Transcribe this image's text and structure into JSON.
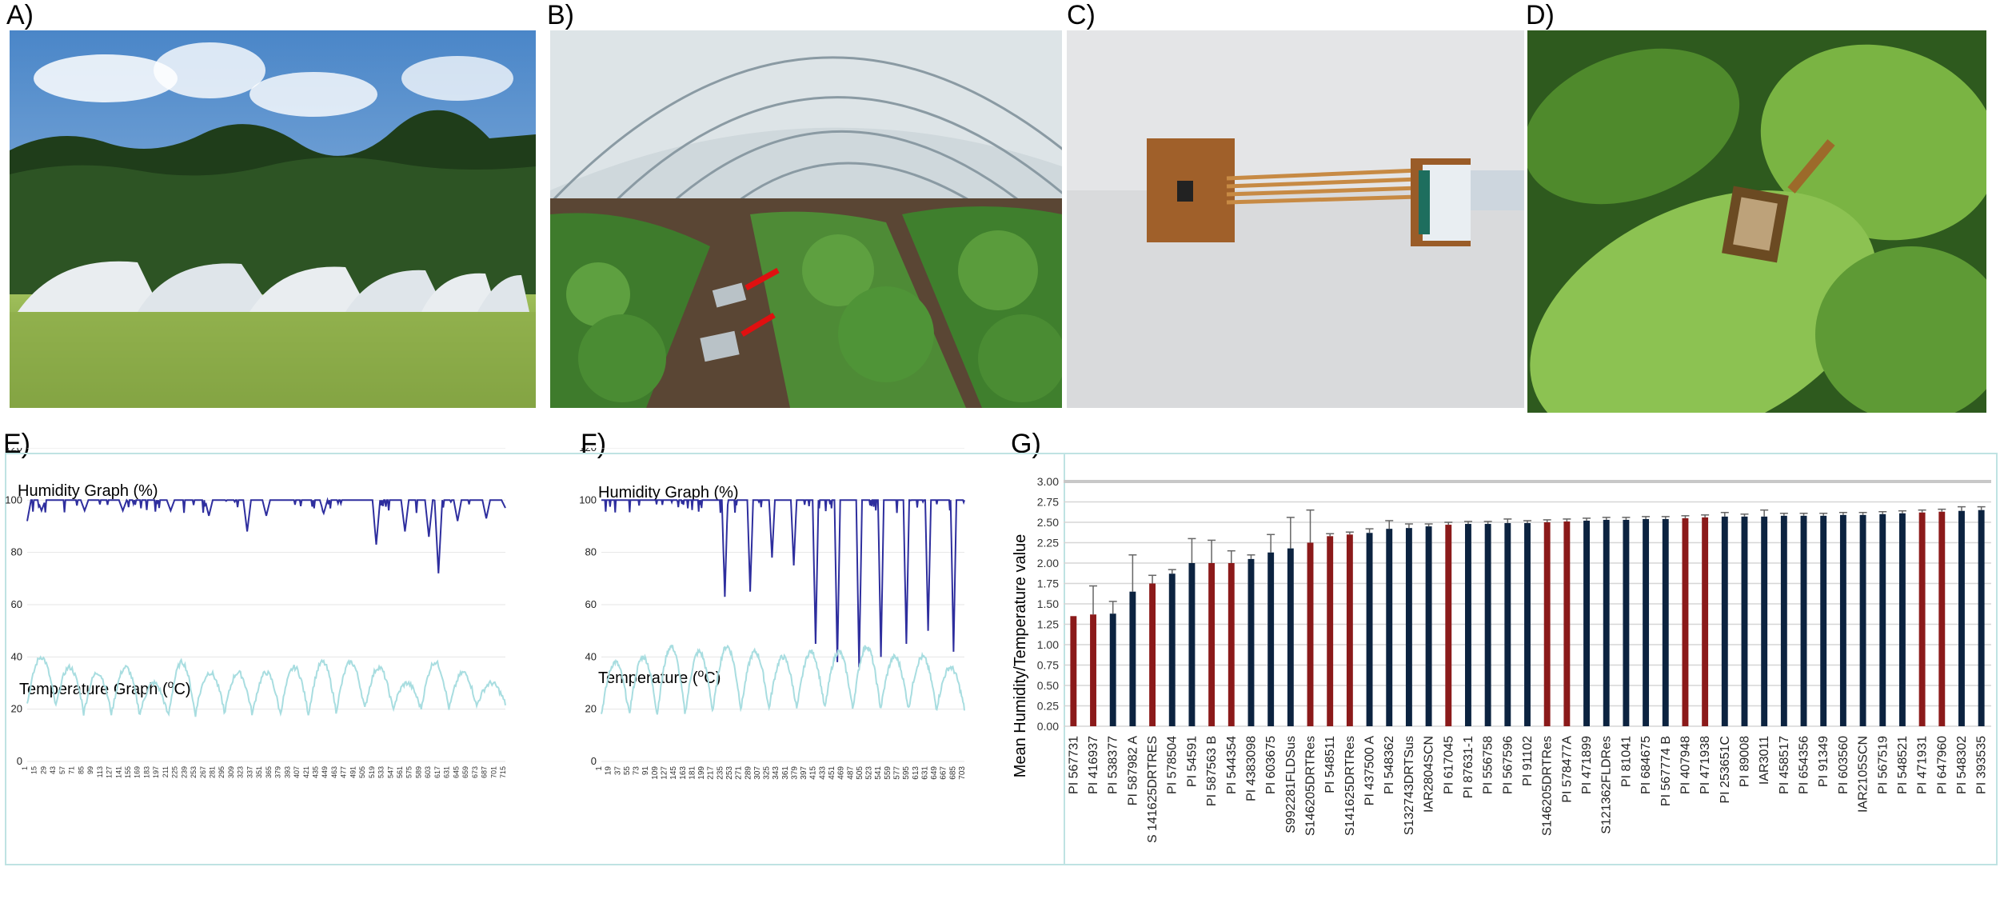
{
  "panels": {
    "a": {
      "label": "A)"
    },
    "b": {
      "label": "B)"
    },
    "c": {
      "label": "C)"
    },
    "d": {
      "label": "D)"
    },
    "e": {
      "label": "E)",
      "humidity_title": "Humidity Graph (%)",
      "temp_title": "Temperature Graph (",
      "temp_unit_sup": "o",
      "temp_unit_end": "C)"
    },
    "f": {
      "label": "F)",
      "humidity_title": "Humidity Graph (%)",
      "temp_title": "Temperature (",
      "temp_unit_sup": "o",
      "temp_unit_end": "C)"
    },
    "g": {
      "label": "G)"
    }
  },
  "colors": {
    "humidity_line": "#2e2e9e",
    "temperature_line": "#a8dde0",
    "bar_dark": "#0c2340",
    "bar_red": "#8b1a1a",
    "frame": "#bfe3e3"
  },
  "chart_data": [
    {
      "id": "E",
      "type": "line",
      "y_ticks": [
        0,
        20,
        40,
        60,
        80,
        100,
        120
      ],
      "ylim": [
        0,
        120
      ],
      "x_ticks": [
        "1",
        "15",
        "29",
        "43",
        "57",
        "71",
        "85",
        "99",
        "113",
        "127",
        "141",
        "155",
        "169",
        "183",
        "197",
        "211",
        "225",
        "239",
        "253",
        "267",
        "281",
        "295",
        "309",
        "323",
        "337",
        "351",
        "365",
        "379",
        "393",
        "407",
        "421",
        "435",
        "449",
        "463",
        "477",
        "491",
        "505",
        "519",
        "533",
        "547",
        "561",
        "575",
        "589",
        "603",
        "617",
        "631",
        "645",
        "659",
        "673",
        "687",
        "701",
        "715"
      ],
      "humidity_dips": [
        [
          0.0,
          92
        ],
        [
          0.03,
          96
        ],
        [
          0.12,
          96
        ],
        [
          0.2,
          96
        ],
        [
          0.3,
          96
        ],
        [
          0.38,
          94
        ],
        [
          0.46,
          88
        ],
        [
          0.5,
          94
        ],
        [
          0.62,
          95
        ],
        [
          0.73,
          83
        ],
        [
          0.79,
          88
        ],
        [
          0.84,
          86
        ],
        [
          0.86,
          72
        ],
        [
          0.9,
          92
        ],
        [
          0.96,
          93
        ],
        [
          1.0,
          97
        ]
      ],
      "temperature_peaks": [
        40,
        36,
        34,
        36,
        30,
        38,
        34,
        34,
        34,
        36,
        38,
        38,
        36,
        30,
        38,
        34,
        30
      ],
      "temperature_troughs": [
        22,
        20,
        18,
        18,
        18,
        16,
        20,
        18,
        18,
        18,
        18,
        20,
        20,
        20,
        20,
        20,
        22
      ]
    },
    {
      "id": "F",
      "type": "line",
      "y_ticks": [
        0,
        20,
        40,
        60,
        80,
        100,
        120
      ],
      "ylim": [
        0,
        120
      ],
      "x_ticks": [
        "1",
        "19",
        "37",
        "55",
        "73",
        "91",
        "109",
        "127",
        "145",
        "163",
        "181",
        "199",
        "217",
        "235",
        "253",
        "271",
        "289",
        "307",
        "325",
        "343",
        "361",
        "379",
        "397",
        "415",
        "433",
        "451",
        "469",
        "487",
        "505",
        "523",
        "541",
        "559",
        "577",
        "595",
        "613",
        "631",
        "649",
        "667",
        "685",
        "703"
      ],
      "humidity_dips": [
        [
          0.34,
          63
        ],
        [
          0.41,
          65
        ],
        [
          0.47,
          78
        ],
        [
          0.53,
          75
        ],
        [
          0.59,
          45
        ],
        [
          0.65,
          38
        ],
        [
          0.71,
          36
        ],
        [
          0.77,
          40
        ],
        [
          0.84,
          45
        ],
        [
          0.9,
          50
        ],
        [
          0.97,
          42
        ]
      ],
      "temperature_peaks": [
        38,
        40,
        44,
        42,
        44,
        42,
        40,
        42,
        42,
        44,
        40,
        40,
        36
      ],
      "temperature_troughs": [
        18,
        18,
        18,
        18,
        20,
        20,
        20,
        20,
        20,
        20,
        20,
        20,
        20
      ]
    },
    {
      "id": "G",
      "type": "bar",
      "ylabel": "Mean Humidity/Temperature value",
      "ylim": [
        0,
        3
      ],
      "y_ticks": [
        "0.00",
        "0.25",
        "0.50",
        "0.75",
        "1.00",
        "1.25",
        "1.50",
        "1.75",
        "2.00",
        "2.25",
        "2.50",
        "2.75",
        "3.00"
      ],
      "categories": [
        "PI 567731",
        "PI 416937",
        "PI 538377",
        "PI 587982 A",
        "S 141625DRTRES",
        "PI 578504",
        "PI 54591",
        "PI 587563 B",
        "PI 544354",
        "PI 4383098",
        "PI 603675",
        "S992281FLDSus",
        "S146205DRTRes",
        "PI 548511",
        "S141625DRTRes",
        "PI 437500 A",
        "PI 548362",
        "S132743DRTSus",
        "IAR2804SCN",
        "PI 617045",
        "PI 87631-1",
        "PI 556758",
        "PI 567596",
        "PI 91102",
        "S146205DRTRes",
        "PI 578477A",
        "PI 471899",
        "S121362FLDRes",
        "PI 81041",
        "PI 684675",
        "PI 567774 B",
        "PI 407948",
        "PI 471938",
        "PI 253651C",
        "PI 89008",
        "IAR3011",
        "PI 458517",
        "PI 654356",
        "PI 91349",
        "PI 603560",
        "IAR2105SCN",
        "PI 567519",
        "PI 548521",
        "PI 471931",
        "PI 647960",
        "PI 548302",
        "PI 393535"
      ],
      "values": [
        1.35,
        1.37,
        1.38,
        1.65,
        1.75,
        1.87,
        2.0,
        2.0,
        2.0,
        2.05,
        2.13,
        2.18,
        2.25,
        2.33,
        2.35,
        2.37,
        2.42,
        2.43,
        2.45,
        2.47,
        2.48,
        2.48,
        2.49,
        2.49,
        2.5,
        2.51,
        2.52,
        2.53,
        2.53,
        2.54,
        2.54,
        2.55,
        2.56,
        2.57,
        2.57,
        2.57,
        2.58,
        2.58,
        2.58,
        2.59,
        2.59,
        2.6,
        2.61,
        2.62,
        2.63,
        2.64,
        2.65
      ],
      "errors": [
        0.0,
        0.35,
        0.15,
        0.45,
        0.1,
        0.05,
        0.3,
        0.28,
        0.15,
        0.05,
        0.22,
        0.38,
        0.4,
        0.03,
        0.03,
        0.05,
        0.1,
        0.05,
        0.03,
        0.03,
        0.03,
        0.03,
        0.05,
        0.03,
        0.03,
        0.03,
        0.03,
        0.03,
        0.03,
        0.03,
        0.03,
        0.03,
        0.03,
        0.05,
        0.03,
        0.08,
        0.03,
        0.03,
        0.03,
        0.03,
        0.03,
        0.03,
        0.03,
        0.03,
        0.03,
        0.05,
        0.04
      ],
      "colors": [
        "red",
        "red",
        "dark",
        "dark",
        "red",
        "dark",
        "dark",
        "red",
        "red",
        "dark",
        "dark",
        "dark",
        "red",
        "red",
        "red",
        "dark",
        "dark",
        "dark",
        "dark",
        "red",
        "dark",
        "dark",
        "dark",
        "dark",
        "red",
        "red",
        "dark",
        "dark",
        "dark",
        "dark",
        "dark",
        "red",
        "red",
        "dark",
        "dark",
        "dark",
        "dark",
        "dark",
        "dark",
        "dark",
        "dark",
        "dark",
        "dark",
        "red",
        "red",
        "dark",
        "dark"
      ]
    }
  ]
}
